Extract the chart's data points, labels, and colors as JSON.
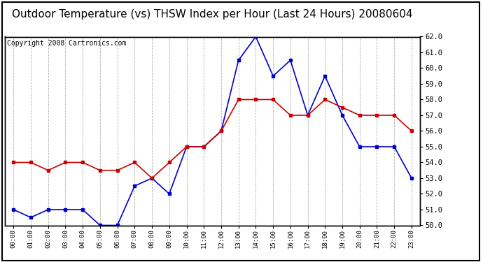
{
  "title": "Outdoor Temperature (vs) THSW Index per Hour (Last 24 Hours) 20080604",
  "copyright": "Copyright 2008 Cartronics.com",
  "x_labels": [
    "00:00",
    "01:00",
    "02:00",
    "03:00",
    "04:00",
    "05:00",
    "06:00",
    "07:00",
    "08:00",
    "09:00",
    "10:00",
    "11:00",
    "12:00",
    "13:00",
    "14:00",
    "15:00",
    "16:00",
    "17:00",
    "18:00",
    "19:00",
    "20:00",
    "21:00",
    "22:00",
    "23:00"
  ],
  "blue_data": [
    51.0,
    50.5,
    51.0,
    51.0,
    51.0,
    50.0,
    50.0,
    52.5,
    53.0,
    52.0,
    55.0,
    55.0,
    56.0,
    60.5,
    62.0,
    59.5,
    60.5,
    57.0,
    59.5,
    57.0,
    55.0,
    55.0,
    55.0,
    53.0
  ],
  "red_data": [
    54.0,
    54.0,
    53.5,
    54.0,
    54.0,
    53.5,
    53.5,
    54.0,
    53.0,
    54.0,
    55.0,
    55.0,
    56.0,
    58.0,
    58.0,
    58.0,
    57.0,
    57.0,
    58.0,
    57.5,
    57.0,
    57.0,
    57.0,
    56.0
  ],
  "ylim": [
    50.0,
    62.0
  ],
  "yticks": [
    50.0,
    51.0,
    52.0,
    53.0,
    54.0,
    55.0,
    56.0,
    57.0,
    58.0,
    59.0,
    60.0,
    61.0,
    62.0
  ],
  "blue_color": "#0000cc",
  "red_color": "#cc0000",
  "bg_color": "#ffffff",
  "grid_color": "#b0b0b0",
  "title_fontsize": 11,
  "copyright_fontsize": 7
}
